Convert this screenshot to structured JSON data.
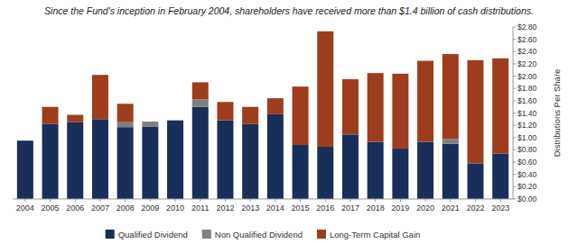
{
  "chart_data": {
    "type": "bar",
    "stacked": true,
    "title": "Since the Fund's inception in February 2004, shareholders have received more than $1.4 billion of cash distributions.",
    "categories": [
      "2004",
      "2005",
      "2006",
      "2007",
      "2008",
      "2009",
      "2010",
      "2011",
      "2012",
      "2013",
      "2014",
      "2015",
      "2016",
      "2017",
      "2018",
      "2019",
      "2020",
      "2021",
      "2022",
      "2023"
    ],
    "series": [
      {
        "name": "Qualified Dividend",
        "color": "#1a2e5a",
        "values": [
          0.95,
          1.22,
          1.25,
          1.3,
          1.17,
          1.18,
          1.28,
          1.5,
          1.28,
          1.22,
          1.38,
          0.88,
          0.85,
          1.05,
          0.93,
          0.82,
          0.93,
          0.9,
          0.58,
          0.74
        ]
      },
      {
        "name": "Non Qualified Dividend",
        "color": "#808080",
        "values": [
          0.0,
          0.0,
          0.0,
          0.0,
          0.08,
          0.08,
          0.0,
          0.12,
          0.0,
          0.0,
          0.0,
          0.0,
          0.0,
          0.0,
          0.0,
          0.0,
          0.0,
          0.08,
          0.0,
          0.0
        ]
      },
      {
        "name": "Long-Term Capital Gain",
        "color": "#9e3d1e",
        "values": [
          0.0,
          0.28,
          0.12,
          0.72,
          0.3,
          0.0,
          0.0,
          0.28,
          0.3,
          0.28,
          0.26,
          0.95,
          1.88,
          0.9,
          1.12,
          1.22,
          1.32,
          1.38,
          1.68,
          1.55
        ]
      }
    ],
    "y_label": "Distributions Per Share",
    "ylim": [
      0.0,
      2.8
    ],
    "yticks": [
      {
        "value": 0.0,
        "label": "$0.00"
      },
      {
        "value": 0.2,
        "label": "$0.20"
      },
      {
        "value": 0.4,
        "label": "$0.40"
      },
      {
        "value": 0.6,
        "label": "$0.60"
      },
      {
        "value": 0.8,
        "label": "$0.80"
      },
      {
        "value": 1.0,
        "label": "$1.00"
      },
      {
        "value": 1.2,
        "label": "$1.20"
      },
      {
        "value": 1.4,
        "label": "$1.40"
      },
      {
        "value": 1.6,
        "label": "$1.60"
      },
      {
        "value": 1.8,
        "label": "$1.80"
      },
      {
        "value": 2.0,
        "label": "$2.00"
      },
      {
        "value": 2.2,
        "label": "$2.20"
      },
      {
        "value": 2.4,
        "label": "$2.40"
      },
      {
        "value": 2.6,
        "label": "$2.60"
      },
      {
        "value": 2.8,
        "label": "$2.80"
      }
    ],
    "grid": false,
    "legend": "bottom"
  }
}
